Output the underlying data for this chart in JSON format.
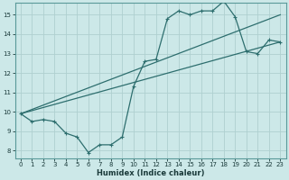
{
  "xlabel": "Humidex (Indice chaleur)",
  "ylabel": "",
  "xlim": [
    -0.5,
    23.5
  ],
  "ylim": [
    7.6,
    15.6
  ],
  "xticks": [
    0,
    1,
    2,
    3,
    4,
    5,
    6,
    7,
    8,
    9,
    10,
    11,
    12,
    13,
    14,
    15,
    16,
    17,
    18,
    19,
    20,
    21,
    22,
    23
  ],
  "yticks": [
    8,
    9,
    10,
    11,
    12,
    13,
    14,
    15
  ],
  "background_color": "#cce8e8",
  "line_color": "#2d6e6e",
  "grid_color": "#afd0d0",
  "line1_x": [
    0,
    1,
    2,
    3,
    4,
    5,
    6,
    7,
    8,
    9,
    10,
    11,
    12,
    13,
    14,
    15,
    16,
    17,
    18,
    19,
    20,
    21,
    22,
    23
  ],
  "line1_y": [
    9.9,
    9.5,
    9.6,
    9.5,
    8.9,
    8.7,
    7.9,
    8.3,
    8.3,
    8.7,
    11.3,
    12.6,
    12.7,
    14.8,
    15.2,
    15.0,
    15.2,
    15.2,
    15.7,
    14.9,
    13.1,
    13.0,
    13.7,
    13.6
  ],
  "line2_x": [
    0,
    23
  ],
  "line2_y": [
    9.9,
    13.6
  ],
  "line3_x": [
    0,
    23
  ],
  "line3_y": [
    9.9,
    15.0
  ]
}
